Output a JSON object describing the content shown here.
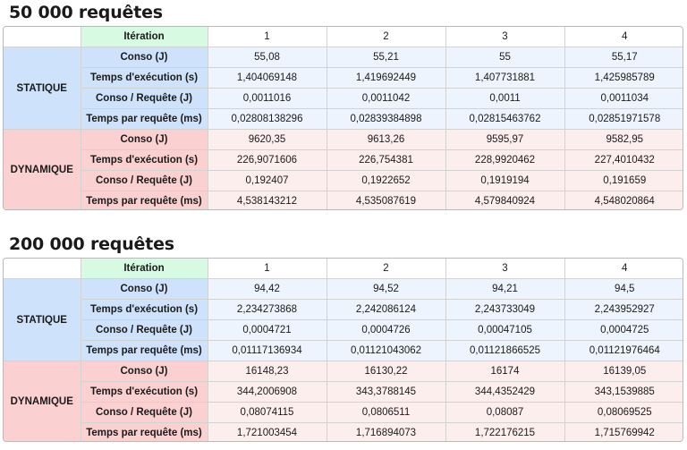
{
  "tables": [
    {
      "title": "50 000 requêtes",
      "iteration_label": "Itération",
      "iterations": [
        "1",
        "2",
        "3",
        "4"
      ],
      "groups": [
        {
          "name": "STATIQUE",
          "rows": [
            {
              "label": "Conso (J)",
              "values": [
                "55,08",
                "55,21",
                "55",
                "55,17"
              ]
            },
            {
              "label": "Temps d'exécution (s)",
              "values": [
                "1,404069148",
                "1,419692449",
                "1,407731881",
                "1,425985789"
              ]
            },
            {
              "label": "Conso / Requête (J)",
              "values": [
                "0,0011016",
                "0,0011042",
                "0,0011",
                "0,0011034"
              ]
            },
            {
              "label": "Temps par requête (ms)",
              "values": [
                "0,02808138296",
                "0,02839384898",
                "0,02815463762",
                "0,02851971578"
              ]
            }
          ]
        },
        {
          "name": "DYNAMIQUE",
          "rows": [
            {
              "label": "Conso (J)",
              "values": [
                "9620,35",
                "9613,26",
                "9595,97",
                "9582,95"
              ]
            },
            {
              "label": "Temps d'exécution (s)",
              "values": [
                "226,9071606",
                "226,754381",
                "228,9920462",
                "227,4010432"
              ]
            },
            {
              "label": "Conso / Requête (J)",
              "values": [
                "0,192407",
                "0,1922652",
                "0,1919194",
                "0,191659"
              ]
            },
            {
              "label": "Temps par requête (ms)",
              "values": [
                "4,538143212",
                "4,535087619",
                "4,579840924",
                "4,548020864"
              ]
            }
          ]
        }
      ]
    },
    {
      "title": "200 000 requêtes",
      "iteration_label": "Itération",
      "iterations": [
        "1",
        "2",
        "3",
        "4"
      ],
      "groups": [
        {
          "name": "STATIQUE",
          "rows": [
            {
              "label": "Conso (J)",
              "values": [
                "94,42",
                "94,52",
                "94,21",
                "94,5"
              ]
            },
            {
              "label": "Temps d'exécution (s)",
              "values": [
                "2,234273868",
                "2,242086124",
                "2,243733049",
                "2,243952927"
              ]
            },
            {
              "label": "Conso / Requête (J)",
              "values": [
                "0,0004721",
                "0,0004726",
                "0,00047105",
                "0,0004725"
              ]
            },
            {
              "label": "Temps par requête (ms)",
              "values": [
                "0,01117136934",
                "0,01121043062",
                "0,01121866525",
                "0,01121976464"
              ]
            }
          ]
        },
        {
          "name": "DYNAMIQUE",
          "rows": [
            {
              "label": "Conso (J)",
              "values": [
                "16148,23",
                "16130,22",
                "16174",
                "16139,05"
              ]
            },
            {
              "label": "Temps d'exécution (s)",
              "values": [
                "344,2006908",
                "343,3788145",
                "344,4352429",
                "343,1539885"
              ]
            },
            {
              "label": "Conso / Requête (J)",
              "values": [
                "0,08074115",
                "0,0806511",
                "0,08087",
                "0,08069525"
              ]
            },
            {
              "label": "Temps par requête (ms)",
              "values": [
                "1,721003454",
                "1,716894073",
                "1,722176215",
                "1,715769942"
              ]
            }
          ]
        }
      ]
    }
  ]
}
